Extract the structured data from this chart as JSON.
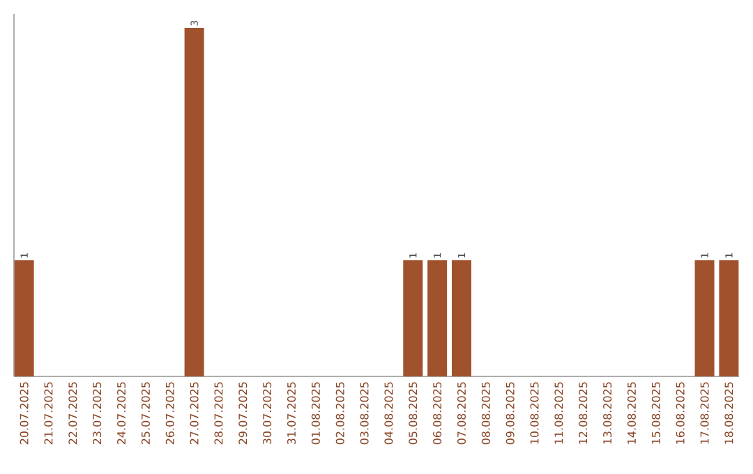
{
  "chart_data": {
    "type": "bar",
    "categories": [
      "20.07.2025",
      "21.07.2025",
      "22.07.2025",
      "23.07.2025",
      "24.07.2025",
      "25.07.2025",
      "26.07.2025",
      "27.07.2025",
      "28.07.2025",
      "29.07.2025",
      "30.07.2025",
      "31.07.2025",
      "01.08.2025",
      "02.08.2025",
      "03.08.2025",
      "04.08.2025",
      "05.08.2025",
      "06.08.2025",
      "07.08.2025",
      "08.08.2025",
      "09.08.2025",
      "10.08.2025",
      "11.08.2025",
      "12.08.2025",
      "13.08.2025",
      "14.08.2025",
      "15.08.2025",
      "16.08.2025",
      "17.08.2025",
      "18.08.2025"
    ],
    "values": [
      1,
      0,
      0,
      0,
      0,
      0,
      0,
      3,
      0,
      0,
      0,
      0,
      0,
      0,
      0,
      0,
      1,
      1,
      1,
      0,
      0,
      0,
      0,
      0,
      0,
      0,
      0,
      0,
      1,
      1
    ],
    "value_labels": [
      "1",
      null,
      null,
      null,
      null,
      null,
      null,
      "3",
      null,
      null,
      null,
      null,
      null,
      null,
      null,
      null,
      "1",
      "1",
      "1",
      null,
      null,
      null,
      null,
      null,
      null,
      null,
      null,
      null,
      "1",
      "1"
    ],
    "color": "#a0522d"
  }
}
